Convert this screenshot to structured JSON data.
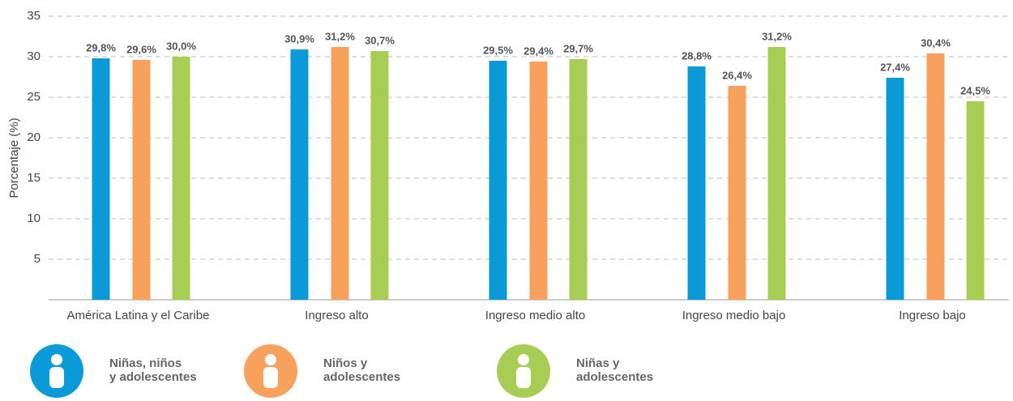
{
  "chart_data": {
    "type": "bar",
    "y_label": "Porcentaje (%)",
    "categories": [
      "América Latina y el Caribe",
      "Ingreso alto",
      "Ingreso medio alto",
      "Ingreso medio bajo",
      "Ingreso bajo"
    ],
    "series": [
      {
        "name": "Niñas, niños\ny adolescentes",
        "color": "#0a9ad7",
        "values": [
          29.8,
          30.9,
          29.5,
          28.8,
          27.4
        ],
        "value_labels": [
          "29,8%",
          "30,9%",
          "29,5%",
          "28,8%",
          "27,4%"
        ]
      },
      {
        "name": "Niños y\nadolescentes",
        "color": "#f7a15c",
        "values": [
          29.6,
          31.2,
          29.4,
          26.4,
          30.4
        ],
        "value_labels": [
          "29,6%",
          "31,2%",
          "29,4%",
          "26,4%",
          "30,4%"
        ]
      },
      {
        "name": "Niñas y\nadolescentes",
        "color": "#a8cd55",
        "values": [
          30.0,
          30.7,
          29.7,
          31.2,
          24.5
        ],
        "value_labels": [
          "30,0%",
          "30,7%",
          "29,7%",
          "31,2%",
          "24,5%"
        ]
      }
    ],
    "ylim": [
      0,
      35
    ],
    "yticks": [
      5,
      10,
      15,
      20,
      25,
      30,
      35
    ],
    "grid": true
  }
}
